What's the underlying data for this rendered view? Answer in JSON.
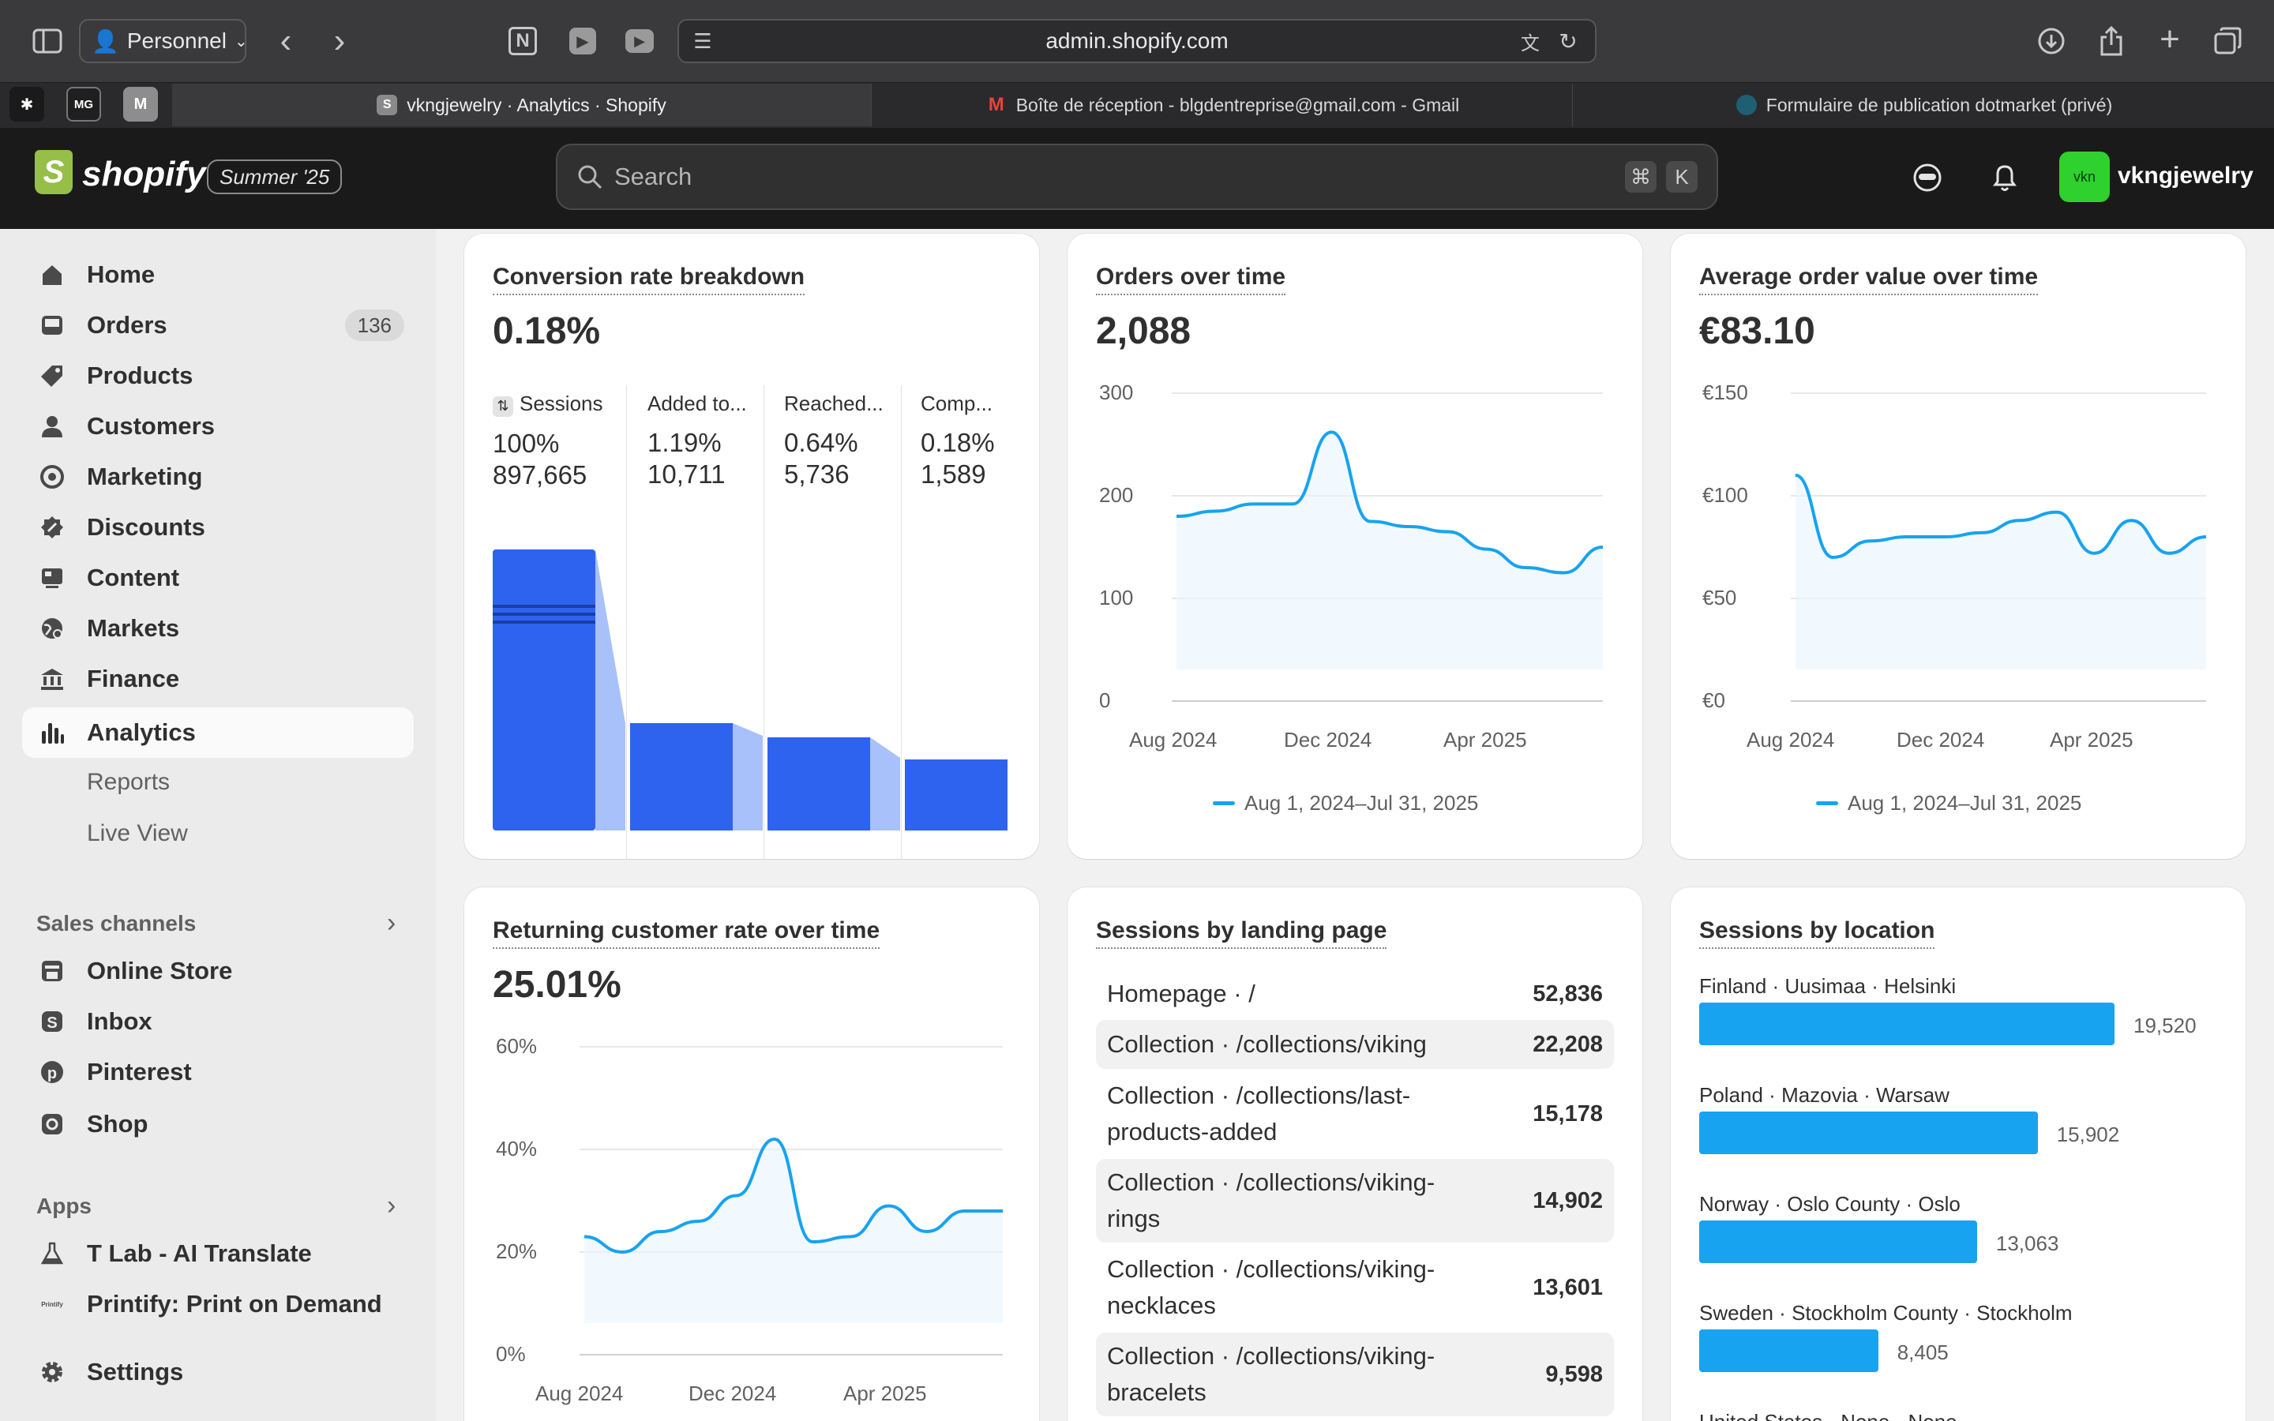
{
  "browser": {
    "profile": "Personnel",
    "url": "admin.shopify.com",
    "tabs": [
      {
        "title": "vkngjewelry · Analytics · Shopify",
        "active": true
      },
      {
        "title": "Boîte de réception - blgdentreprise@gmail.com - Gmail",
        "active": false
      },
      {
        "title": "Formulaire de publication dotmarket (privé)",
        "active": false
      }
    ],
    "pinned": [
      "MG",
      "M"
    ]
  },
  "header": {
    "logo": "shopify",
    "edition": "Summer '25",
    "search_placeholder": "Search",
    "shortcut_cmd": "⌘",
    "shortcut_key": "K",
    "avatar_initials": "vkn",
    "store_name": "vkngjewelry"
  },
  "sidebar": {
    "items": [
      {
        "label": "Home",
        "icon": "home-icon"
      },
      {
        "label": "Orders",
        "icon": "inbox-icon",
        "badge": "136"
      },
      {
        "label": "Products",
        "icon": "tag-icon"
      },
      {
        "label": "Customers",
        "icon": "person-icon"
      },
      {
        "label": "Marketing",
        "icon": "target-icon"
      },
      {
        "label": "Discounts",
        "icon": "discount-icon"
      },
      {
        "label": "Content",
        "icon": "content-icon"
      },
      {
        "label": "Markets",
        "icon": "globe-icon"
      },
      {
        "label": "Finance",
        "icon": "bank-icon"
      },
      {
        "label": "Analytics",
        "icon": "bar-chart-icon",
        "active": true
      }
    ],
    "sub_items": [
      "Reports",
      "Live View"
    ],
    "sales_channels_label": "Sales channels",
    "sales_channels": [
      "Online Store",
      "Inbox",
      "Pinterest",
      "Shop"
    ],
    "apps_label": "Apps",
    "apps": [
      "T Lab - AI Translate",
      "Printify: Print on Demand"
    ],
    "settings_label": "Settings"
  },
  "cards": {
    "conversion": {
      "title": "Conversion rate breakdown",
      "value": "0.18%",
      "steps": [
        {
          "label": "Sessions",
          "pct": "100%",
          "count": "897,665"
        },
        {
          "label": "Added to...",
          "pct": "1.19%",
          "count": "10,711"
        },
        {
          "label": "Reached...",
          "pct": "0.64%",
          "count": "5,736"
        },
        {
          "label": "Comp...",
          "pct": "0.18%",
          "count": "1,589"
        }
      ]
    },
    "orders": {
      "title": "Orders over time",
      "value": "2,088",
      "legend": "Aug 1, 2024–Jul 31, 2025",
      "y_ticks": [
        "300",
        "200",
        "100",
        "0"
      ],
      "x_ticks": [
        "Aug 2024",
        "Dec 2024",
        "Apr 2025"
      ]
    },
    "aov": {
      "title": "Average order value over time",
      "value": "€83.10",
      "legend": "Aug 1, 2024–Jul 31, 2025",
      "y_ticks": [
        "€150",
        "€100",
        "€50",
        "€0"
      ],
      "x_ticks": [
        "Aug 2024",
        "Dec 2024",
        "Apr 2025"
      ]
    },
    "returning": {
      "title": "Returning customer rate over time",
      "value": "25.01%",
      "y_ticks": [
        "60%",
        "40%",
        "20%",
        "0%"
      ],
      "x_ticks": [
        "Aug 2024",
        "Dec 2024",
        "Apr 2025"
      ]
    },
    "landing": {
      "title": "Sessions by landing page",
      "rows": [
        {
          "page": "Homepage · /",
          "value": "52,836"
        },
        {
          "page": "Collection · /collections/viking",
          "value": "22,208"
        },
        {
          "page": "Collection · /collections/last-products-added",
          "value": "15,178"
        },
        {
          "page": "Collection · /collections/viking-rings",
          "value": "14,902"
        },
        {
          "page": "Collection · /collections/viking-necklaces",
          "value": "13,601"
        },
        {
          "page": "Collection · /collections/viking-bracelets",
          "value": "9,598"
        }
      ]
    },
    "location": {
      "title": "Sessions by location",
      "rows": [
        {
          "place": "Finland · Uusimaa · Helsinki",
          "value": "19,520",
          "share": 1.0
        },
        {
          "place": "Poland · Mazovia · Warsaw",
          "value": "15,902",
          "share": 0.815
        },
        {
          "place": "Norway · Oslo County · Oslo",
          "value": "13,063",
          "share": 0.669
        },
        {
          "place": "Sweden · Stockholm County · Stockholm",
          "value": "8,405",
          "share": 0.431
        },
        {
          "place": "United States · None · None",
          "value": "",
          "share": 0
        }
      ]
    }
  },
  "colors": {
    "accent_blue": "#17a3f0",
    "funnel_blue": "#2e63f0",
    "header_bg": "#1a1a1a",
    "avatar_green": "#2ed12e"
  },
  "chart_data": [
    {
      "type": "line",
      "title": "Orders over time",
      "x": [
        "Aug 2024",
        "Sep 2024",
        "Oct 2024",
        "Nov 2024",
        "Dec 2024",
        "Jan 2025",
        "Feb 2025",
        "Mar 2025",
        "Apr 2025",
        "May 2025",
        "Jun 2025",
        "Jul 2025"
      ],
      "series": [
        {
          "name": "Aug 1, 2024–Jul 31, 2025",
          "values": [
            180,
            185,
            192,
            192,
            262,
            175,
            170,
            165,
            148,
            130,
            125,
            150
          ]
        }
      ],
      "ylim": [
        0,
        300
      ]
    },
    {
      "type": "line",
      "title": "Average order value over time",
      "x": [
        "Aug 2024",
        "Sep 2024",
        "Oct 2024",
        "Nov 2024",
        "Dec 2024",
        "Jan 2025",
        "Feb 2025",
        "Mar 2025",
        "Apr 2025",
        "May 2025",
        "Jun 2025",
        "Jul 2025"
      ],
      "series": [
        {
          "name": "Aug 1, 2024–Jul 31, 2025",
          "values": [
            110,
            70,
            78,
            80,
            80,
            82,
            88,
            92,
            72,
            88,
            72,
            80
          ]
        }
      ],
      "ylim": [
        0,
        150
      ]
    },
    {
      "type": "line",
      "title": "Returning customer rate over time",
      "x": [
        "Aug 2024",
        "Sep 2024",
        "Oct 2024",
        "Nov 2024",
        "Dec 2024",
        "Jan 2025",
        "Feb 2025",
        "Mar 2025",
        "Apr 2025",
        "May 2025",
        "Jun 2025",
        "Jul 2025"
      ],
      "series": [
        {
          "name": "",
          "values": [
            23,
            20,
            24,
            26,
            31,
            42,
            22,
            23,
            29,
            24,
            28,
            28
          ]
        }
      ],
      "ylim": [
        0,
        60
      ]
    },
    {
      "type": "bar",
      "title": "Conversion rate breakdown",
      "categories": [
        "Sessions",
        "Added to...",
        "Reached...",
        "Comp..."
      ],
      "values": [
        100,
        1.19,
        0.64,
        0.18
      ]
    }
  ]
}
